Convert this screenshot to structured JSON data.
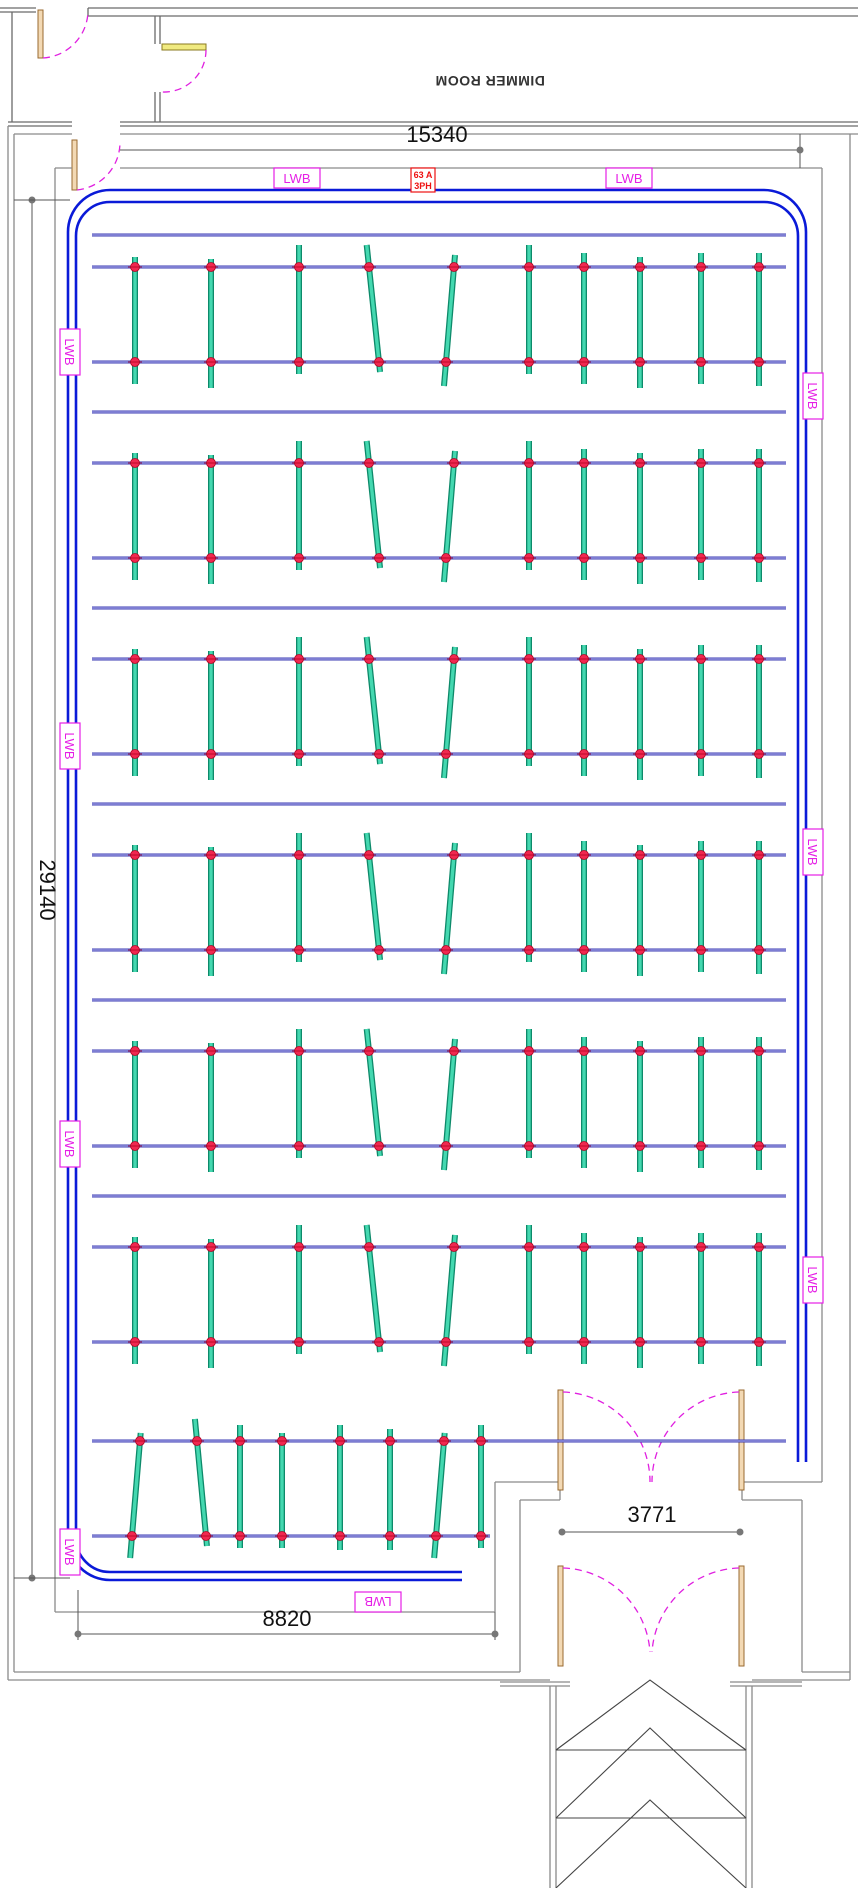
{
  "room_label": "DIMMER ROOM",
  "dimensions": {
    "top_width": "15340",
    "left_height": "29140",
    "bottom_width": "8820",
    "door_width": "3771"
  },
  "labels": {
    "lwb": "LWB",
    "power_line1": "63 A",
    "power_line2": "3PH"
  },
  "colors": {
    "busway": "#0a1ad8",
    "pipe": "#3838b0",
    "batten": "#44d8b0",
    "clamp": "#f02850",
    "annotation": "#e61ee6",
    "door_swing": "#e020e0"
  }
}
